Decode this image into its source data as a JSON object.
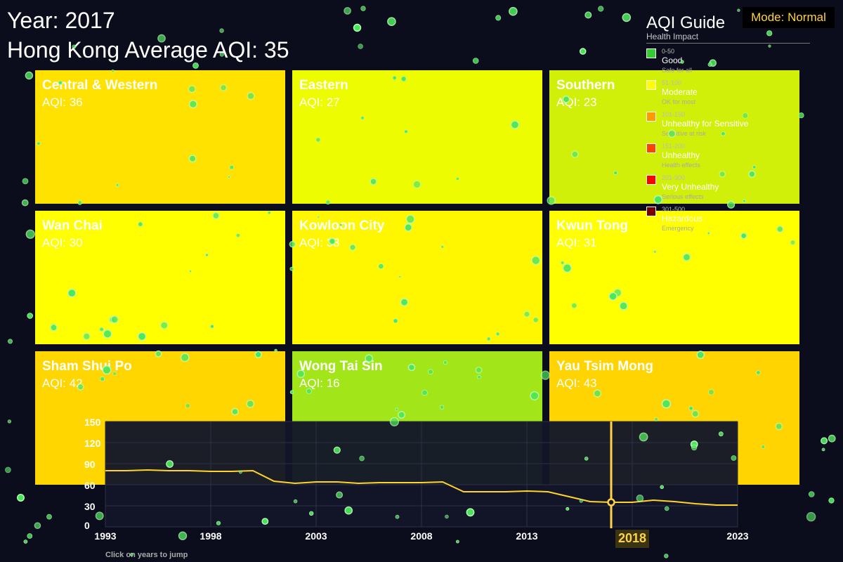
{
  "header": {
    "year_text": "Year: 2017",
    "average_text": "Hong Kong Average AQI: 35"
  },
  "mode": {
    "label": "Mode: Normal"
  },
  "districts": [
    {
      "name": "Central & Western",
      "aqi_text": "AQI: 36",
      "color": "#ffe200"
    },
    {
      "name": "Eastern",
      "aqi_text": "AQI: 27",
      "color": "#eefc00"
    },
    {
      "name": "Southern",
      "aqi_text": "AQI: 23",
      "color": "#d0f00a"
    },
    {
      "name": "Wan Chai",
      "aqi_text": "AQI: 30",
      "color": "#ffff00"
    },
    {
      "name": "Kowloon City",
      "aqi_text": "AQI: 33",
      "color": "#fff700"
    },
    {
      "name": "Kwun Tong",
      "aqi_text": "AQI: 31",
      "color": "#ffff00"
    },
    {
      "name": "Sham Shui Po",
      "aqi_text": "AQI: 42",
      "color": "#ffd600"
    },
    {
      "name": "Wong Tai Sin",
      "aqi_text": "AQI: 16",
      "color": "#a2e61a"
    },
    {
      "name": "Yau Tsim Mong",
      "aqi_text": "AQI: 43",
      "color": "#ffd400"
    }
  ],
  "legend": {
    "title": "AQI Guide",
    "subtitle": "Health Impact",
    "items": [
      {
        "range": "0-50",
        "label": "Good",
        "desc": "Safe for all",
        "color": "#33cc33"
      },
      {
        "range": "51-100",
        "label": "Moderate",
        "desc": "OK for most",
        "color": "#ffff00"
      },
      {
        "range": "101-150",
        "label": "Unhealthy for Sensitive",
        "desc": "Sensitive at risk",
        "color": "#ff9900"
      },
      {
        "range": "151-200",
        "label": "Unhealthy",
        "desc": "Health effects",
        "color": "#ff4400"
      },
      {
        "range": "201-300",
        "label": "Very Unhealthy",
        "desc": "Serious effects",
        "color": "#ff0000"
      },
      {
        "range": "301-500",
        "label": "Hazardous",
        "desc": "Emergency",
        "color": "#7a0000"
      }
    ]
  },
  "timeline": {
    "y_ticks": [
      "150",
      "120",
      "90",
      "60",
      "30",
      "0"
    ],
    "x_ticks": [
      "1993",
      "1998",
      "2003",
      "2008",
      "2013",
      "2018",
      "2023"
    ],
    "highlight_label": "2018",
    "hint": "Click on years to jump",
    "line_color": "#ffd32a"
  },
  "chart_data": {
    "type": "line",
    "x": [
      1993,
      1994,
      1995,
      1996,
      1997,
      1998,
      1999,
      2000,
      2001,
      2002,
      2003,
      2004,
      2005,
      2006,
      2007,
      2008,
      2009,
      2010,
      2011,
      2012,
      2013,
      2014,
      2015,
      2016,
      2017,
      2018,
      2019,
      2020,
      2021,
      2022,
      2023
    ],
    "values": [
      80,
      80,
      81,
      80,
      80,
      79,
      79,
      80,
      65,
      62,
      64,
      64,
      62,
      63,
      63,
      63,
      64,
      50,
      50,
      50,
      51,
      50,
      43,
      36,
      35,
      35,
      38,
      36,
      33,
      31,
      31
    ],
    "ylim": [
      0,
      150
    ],
    "xlim": [
      1993,
      2023
    ],
    "selected_x": 2017,
    "grid": true
  }
}
